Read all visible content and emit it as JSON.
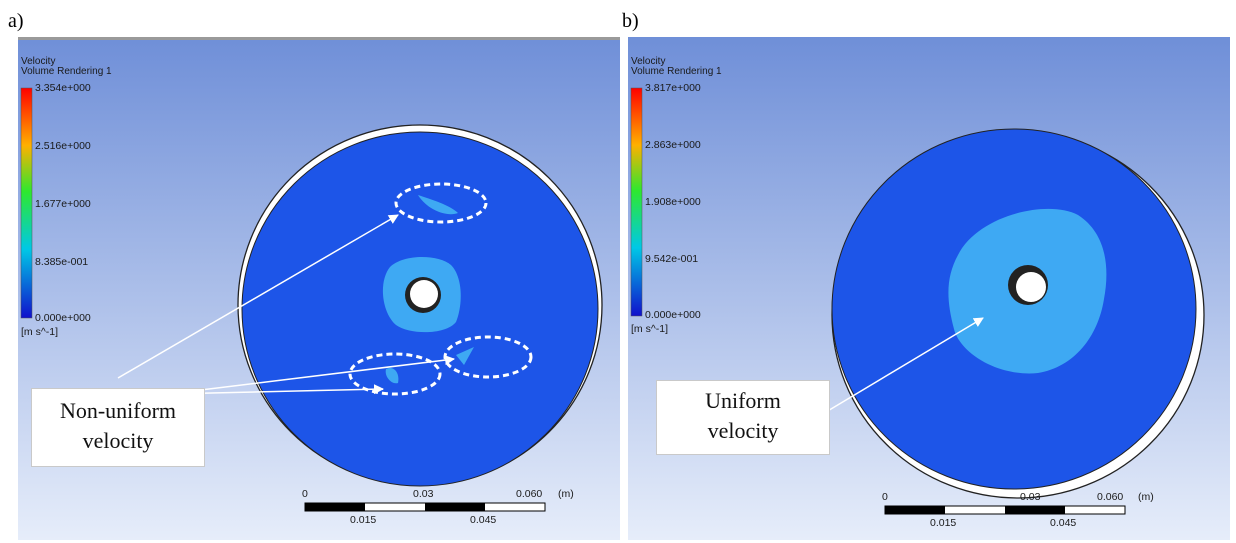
{
  "figure": {
    "panel_a": {
      "label": "a)",
      "variable": "Velocity",
      "rendering": "Volume Rendering 1",
      "legend_ticks": [
        "3.354e+000",
        "2.516e+000",
        "1.677e+000",
        "8.385e-001",
        "0.000e+000"
      ],
      "unit": "[m s^-1]",
      "scale_top": [
        "0",
        "0.03",
        "0.060",
        "(m)"
      ],
      "scale_bottom": [
        "0.015",
        "0.045"
      ],
      "callout": [
        "Non-uniform",
        "velocity"
      ]
    },
    "panel_b": {
      "label": "b)",
      "variable": "Velocity",
      "rendering": "Volume Rendering 1",
      "legend_ticks": [
        "3.817e+000",
        "2.863e+000",
        "1.908e+000",
        "9.542e-001",
        "0.000e+000"
      ],
      "unit": "[m s^-1]",
      "scale_top": [
        "0",
        "0.03",
        "0.060",
        "(m)"
      ],
      "scale_bottom": [
        "0.015",
        "0.045"
      ],
      "callout": [
        "Uniform",
        "velocity"
      ]
    },
    "colors": {
      "background_top": "#6f8fd8",
      "background_bottom": "#e6edfa",
      "disk": "#1d55e8",
      "light_region": "#3ea9f3",
      "annotation": "#ffffff"
    }
  }
}
